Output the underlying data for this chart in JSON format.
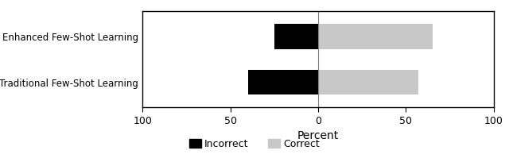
{
  "categories": [
    "Assertion Enhanced Few-Shot Learning",
    "Traditional Few-Shot Learning"
  ],
  "incorrect_values": [
    -25,
    -40
  ],
  "correct_values": [
    65,
    57
  ],
  "incorrect_color": "#000000",
  "correct_color": "#c8c8c8",
  "xlabel": "Percent",
  "xlim": [
    -100,
    100
  ],
  "xticks": [
    -100,
    -50,
    0,
    50,
    100
  ],
  "xticklabels": [
    "100",
    "50",
    "0",
    "50",
    "100"
  ],
  "legend_incorrect": "Incorrect",
  "legend_correct": "Correct",
  "background_color": "#ffffff",
  "bar_height": 0.55,
  "figsize": [
    6.4,
    1.99
  ],
  "dpi": 100,
  "ytick_fontsize": 8.5,
  "xtick_fontsize": 9,
  "xlabel_fontsize": 10,
  "legend_fontsize": 9
}
